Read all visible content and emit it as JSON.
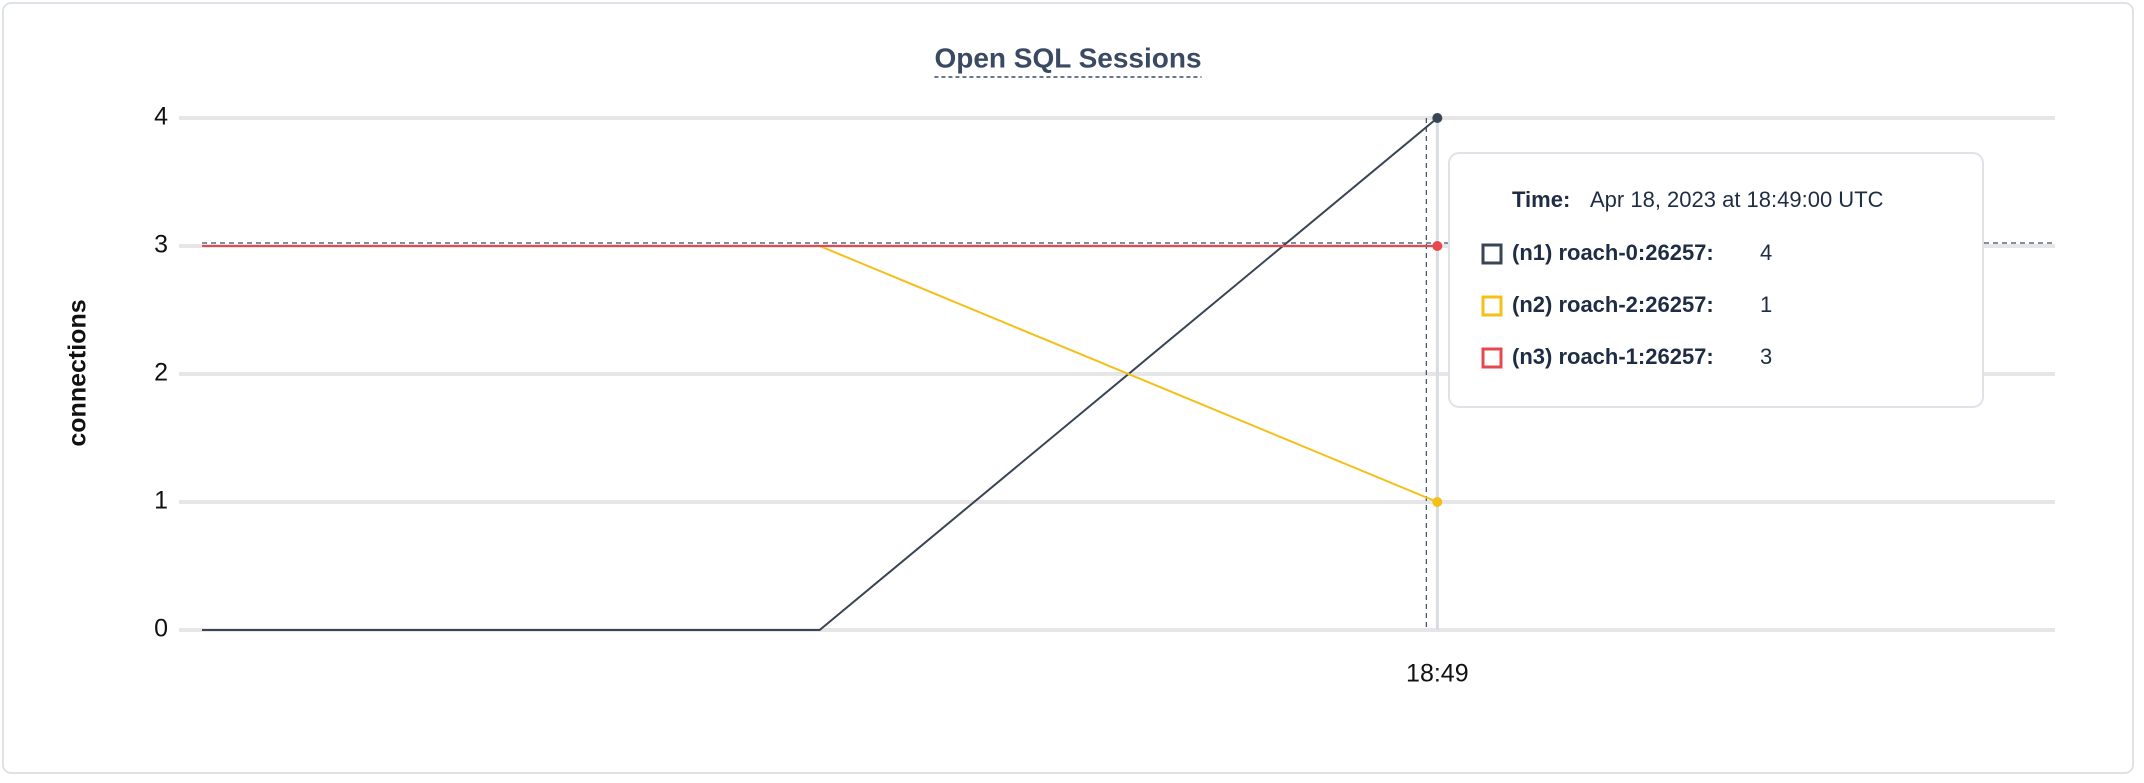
{
  "chart_data": {
    "type": "line",
    "title": "Open SQL Sessions",
    "y_label": "connections",
    "categories": [
      null,
      null,
      "18:49",
      null
    ],
    "series": [
      {
        "name": "(n1) roach-0:26257:",
        "color": "#394455",
        "values": [
          0,
          0,
          4,
          null
        ]
      },
      {
        "name": "(n2) roach-2:26257:",
        "color": "#f5bf1a",
        "values": [
          3,
          3,
          1,
          null
        ]
      },
      {
        "name": "(n3) roach-1:26257:",
        "color": "#e5484d",
        "values": [
          3,
          3,
          3,
          null
        ]
      }
    ],
    "ylim": [
      0,
      4
    ],
    "yticks": [
      0,
      1,
      2,
      3,
      4
    ],
    "grid": true,
    "tooltip": {
      "time_label": "Time:",
      "time": "Apr 18, 2023 at 18:49:00 UTC",
      "index": 2
    }
  }
}
